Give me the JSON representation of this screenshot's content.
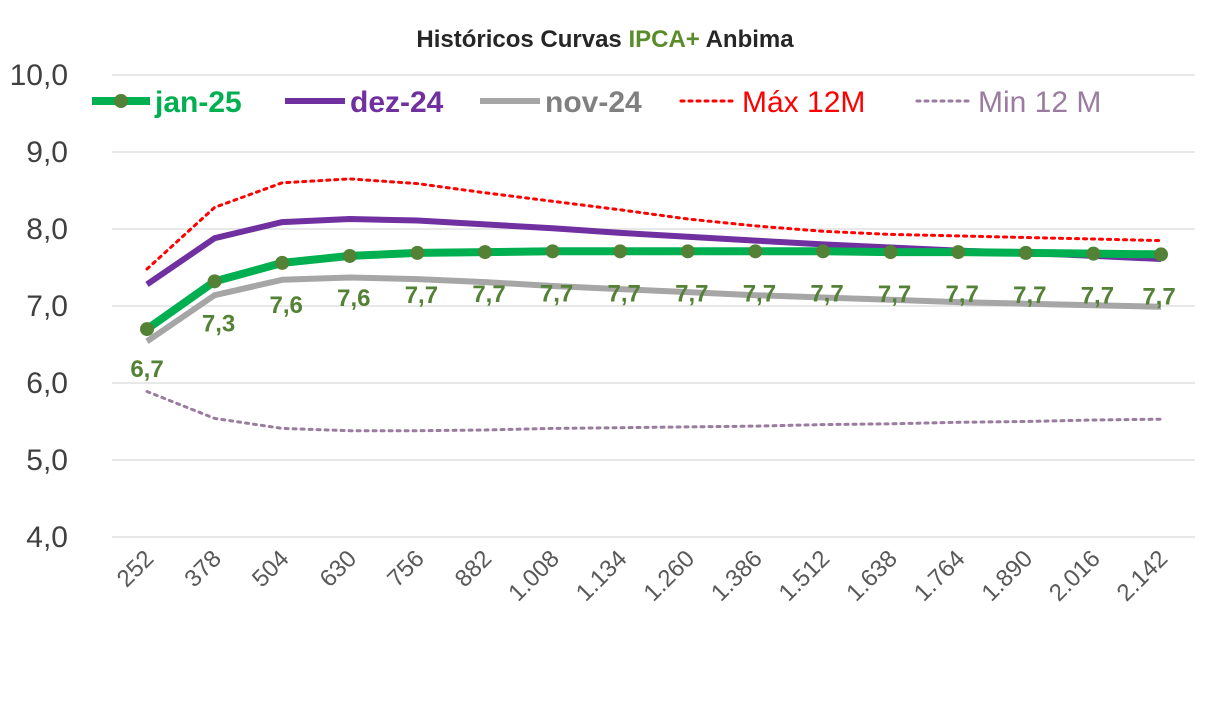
{
  "chart_data": {
    "type": "line",
    "title_parts": [
      "Históricos Curvas ",
      "IPCA+",
      " Anbima"
    ],
    "title": "Históricos Curvas IPCA+ Anbima",
    "xlabel": "",
    "ylabel": "",
    "ylim": [
      4.0,
      10.0
    ],
    "yticks": [
      "4,0",
      "5,0",
      "6,0",
      "7,0",
      "8,0",
      "9,0",
      "10,0"
    ],
    "categories": [
      "252",
      "378",
      "504",
      "630",
      "756",
      "882",
      "1.008",
      "1.134",
      "1.260",
      "1.386",
      "1.512",
      "1.638",
      "1.764",
      "1.890",
      "2.016",
      "2.142"
    ],
    "legend_position": "top",
    "grid": true,
    "series": [
      {
        "name": "jan-25",
        "color": "#00B050",
        "marker_color": "#538135",
        "style": "solid-markers",
        "values": [
          6.7,
          7.32,
          7.56,
          7.65,
          7.69,
          7.7,
          7.71,
          7.71,
          7.71,
          7.71,
          7.71,
          7.7,
          7.7,
          7.69,
          7.68,
          7.67
        ],
        "data_labels": [
          "6,7",
          "7,3",
          "7,6",
          "7,6",
          "7,7",
          "7,7",
          "7,7",
          "7,7",
          "7,7",
          "7,7",
          "7,7",
          "7,7",
          "7,7",
          "7,7",
          "7,7",
          "7,7"
        ]
      },
      {
        "name": "dez-24",
        "color": "#7030A0",
        "style": "solid",
        "values": [
          7.28,
          7.88,
          8.09,
          8.13,
          8.11,
          8.06,
          8.01,
          7.95,
          7.9,
          7.85,
          7.8,
          7.76,
          7.72,
          7.69,
          7.65,
          7.61
        ]
      },
      {
        "name": "nov-24",
        "color": "#A6A6A6",
        "style": "solid",
        "values": [
          6.54,
          7.14,
          7.34,
          7.37,
          7.35,
          7.31,
          7.26,
          7.22,
          7.18,
          7.14,
          7.11,
          7.08,
          7.05,
          7.03,
          7.01,
          6.99
        ]
      },
      {
        "name": "Máx 12M",
        "color": "#FF0000",
        "style": "dotted",
        "values": [
          7.48,
          8.28,
          8.6,
          8.65,
          8.59,
          8.47,
          8.36,
          8.25,
          8.13,
          8.04,
          7.97,
          7.93,
          7.91,
          7.89,
          7.87,
          7.85
        ]
      },
      {
        "name": "Min 12 M",
        "color": "#9B7BA0",
        "style": "dotted",
        "values": [
          5.89,
          5.54,
          5.41,
          5.38,
          5.38,
          5.39,
          5.41,
          5.42,
          5.43,
          5.44,
          5.46,
          5.47,
          5.49,
          5.5,
          5.52,
          5.53
        ]
      }
    ]
  }
}
